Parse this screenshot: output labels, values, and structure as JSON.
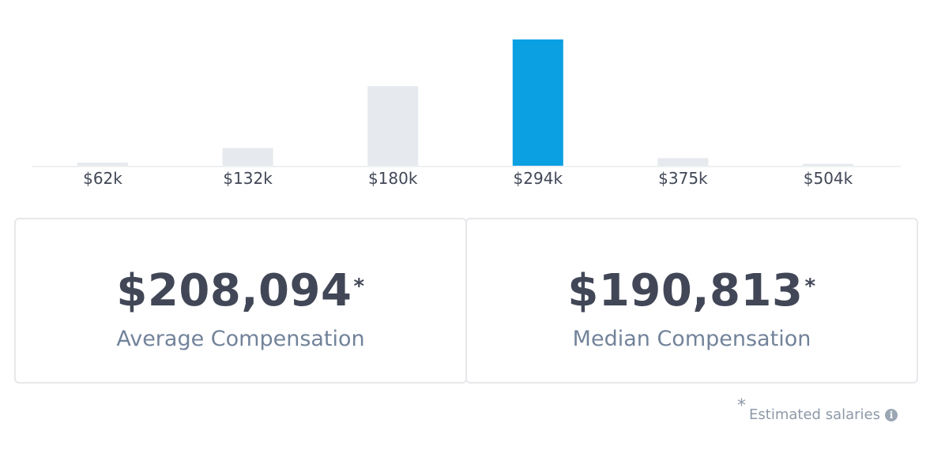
{
  "chart_data": {
    "type": "bar",
    "categories": [
      "$62k",
      "$132k",
      "$180k",
      "$294k",
      "$375k",
      "$504k"
    ],
    "values": [
      2.5,
      14,
      63,
      100,
      6,
      1.5
    ],
    "highlight_index": 3,
    "colors": {
      "bar": "#e6e9ed",
      "highlight": "#0aa0e2",
      "baseline": "#eef0f2",
      "tick_label": "#414756"
    },
    "ylim": [
      0,
      100
    ],
    "title": "",
    "xlabel": "",
    "ylabel": ""
  },
  "stats": {
    "average": {
      "value": "$208,094",
      "marker": "*",
      "label": "Average Compensation"
    },
    "median": {
      "value": "$190,813",
      "marker": "*",
      "label": "Median Compensation"
    }
  },
  "footnote": {
    "marker": "*",
    "text": "Estimated salaries",
    "icon": "info-icon",
    "icon_glyph": "i"
  }
}
